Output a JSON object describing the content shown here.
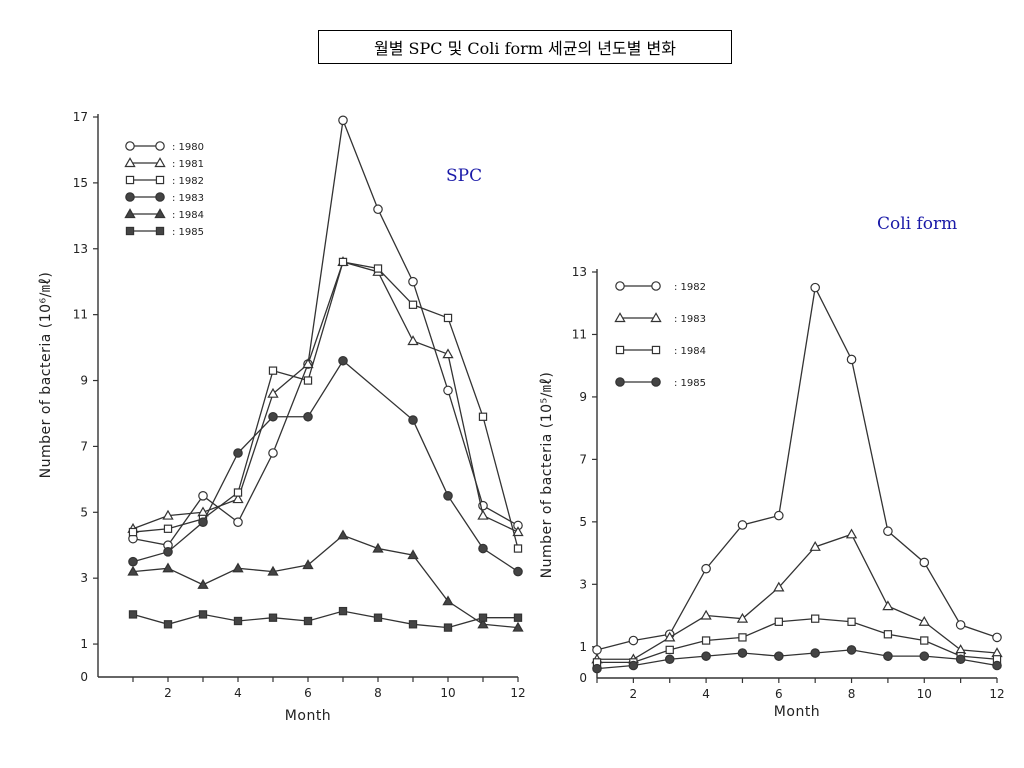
{
  "page_title": "월별 SPC 및 Coli form 세균의 년도별 변화",
  "chart_data": [
    {
      "type": "line",
      "title": "SPC",
      "xlabel": "Month",
      "ylabel": "Number of bacteria (10⁶/㎖)",
      "ylim": [
        0,
        17
      ],
      "xlim": [
        0,
        12
      ],
      "xticks": [
        2,
        4,
        6,
        8,
        10,
        12
      ],
      "yticks": [
        1,
        3,
        5,
        7,
        9,
        11,
        13,
        15,
        17
      ],
      "x": [
        1,
        2,
        3,
        4,
        5,
        6,
        7,
        8,
        9,
        10,
        11,
        12
      ],
      "legend_position": "top-left",
      "series": [
        {
          "name": "1980",
          "marker": "circle-open",
          "values": [
            4.2,
            4.0,
            5.5,
            4.7,
            6.8,
            9.5,
            16.9,
            14.2,
            12.0,
            8.7,
            5.2,
            4.6
          ]
        },
        {
          "name": "1981",
          "marker": "triangle-open",
          "values": [
            4.5,
            4.9,
            5.0,
            5.4,
            8.6,
            9.5,
            12.6,
            12.3,
            10.2,
            9.8,
            4.9,
            4.4
          ]
        },
        {
          "name": "1982",
          "marker": "square-open",
          "values": [
            4.4,
            4.5,
            4.8,
            5.6,
            9.3,
            9.0,
            12.6,
            12.4,
            11.3,
            10.9,
            7.9,
            3.9
          ]
        },
        {
          "name": "1983",
          "marker": "circle-filled",
          "values": [
            3.5,
            3.8,
            4.7,
            6.8,
            7.9,
            7.9,
            9.6,
            null,
            7.8,
            5.5,
            3.9,
            3.2
          ]
        },
        {
          "name": "1984",
          "marker": "triangle-filled",
          "values": [
            3.2,
            3.3,
            2.8,
            3.3,
            3.2,
            3.4,
            4.3,
            3.9,
            3.7,
            2.3,
            1.6,
            1.5
          ]
        },
        {
          "name": "1985",
          "marker": "square-filled",
          "values": [
            1.9,
            1.6,
            1.9,
            1.7,
            1.8,
            1.7,
            2.0,
            1.8,
            1.6,
            1.5,
            1.8,
            1.8
          ]
        }
      ]
    },
    {
      "type": "line",
      "title": "Coli form",
      "xlabel": "Month",
      "ylabel": "Number of bacteria (10⁵/㎖)",
      "ylim": [
        0,
        13
      ],
      "xlim": [
        1,
        12
      ],
      "xticks": [
        2,
        4,
        6,
        8,
        10,
        12
      ],
      "yticks": [
        1,
        3,
        5,
        7,
        9,
        11,
        13
      ],
      "x": [
        1,
        2,
        3,
        4,
        5,
        6,
        7,
        8,
        9,
        10,
        11,
        12
      ],
      "legend_position": "top-left",
      "series": [
        {
          "name": "1982",
          "marker": "circle-open",
          "values": [
            0.9,
            1.2,
            1.4,
            3.5,
            4.9,
            5.2,
            12.5,
            10.2,
            4.7,
            3.7,
            1.7,
            1.3
          ]
        },
        {
          "name": "1983",
          "marker": "triangle-open",
          "values": [
            0.6,
            0.6,
            1.3,
            2.0,
            1.9,
            2.9,
            4.2,
            4.6,
            2.3,
            1.8,
            0.9,
            0.8
          ]
        },
        {
          "name": "1984",
          "marker": "square-open",
          "values": [
            0.5,
            0.5,
            0.9,
            1.2,
            1.3,
            1.8,
            1.9,
            1.8,
            1.4,
            1.2,
            0.7,
            0.6
          ]
        },
        {
          "name": "1985",
          "marker": "circle-filled",
          "values": [
            0.3,
            0.4,
            0.6,
            0.7,
            0.8,
            0.7,
            0.8,
            0.9,
            0.7,
            0.7,
            0.6,
            0.4
          ]
        }
      ]
    }
  ]
}
